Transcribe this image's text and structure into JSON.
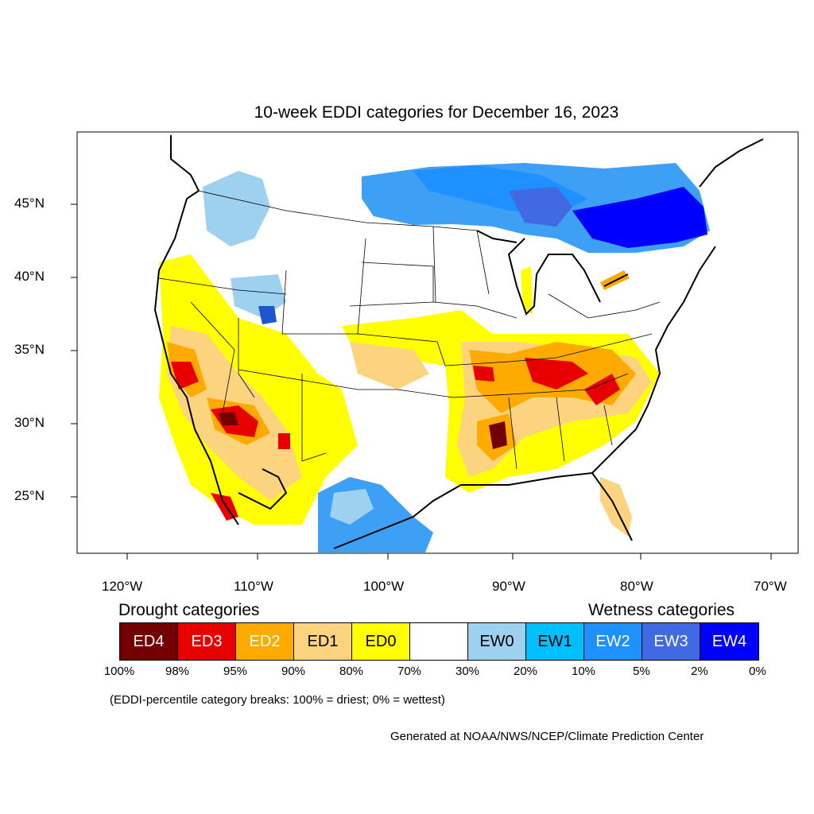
{
  "title": "10-week EDDI categories for December 16, 2023",
  "map": {
    "lat_labels": [
      "45°N",
      "40°N",
      "35°N",
      "30°N",
      "25°N"
    ],
    "lon_labels": [
      "120°W",
      "110°W",
      "100°W",
      "90°W",
      "80°W",
      "70°W"
    ]
  },
  "legend": {
    "drought_heading": "Drought categories",
    "wetness_heading": "Wetness categories",
    "categories": [
      {
        "label": "ED4",
        "color": "#730000",
        "text_color": "#ffffff"
      },
      {
        "label": "ED3",
        "color": "#e60000",
        "text_color": "#ffffff"
      },
      {
        "label": "ED2",
        "color": "#ffaa00",
        "text_color": "#ffffff"
      },
      {
        "label": "ED1",
        "color": "#fcd37f",
        "text_color": "#000000"
      },
      {
        "label": "ED0",
        "color": "#ffff00",
        "text_color": "#000000"
      },
      {
        "label": "",
        "color": "#ffffff",
        "text_color": "#000000"
      },
      {
        "label": "EW0",
        "color": "#9ed0f0",
        "text_color": "#000000"
      },
      {
        "label": "EW1",
        "color": "#00bfff",
        "text_color": "#000000"
      },
      {
        "label": "EW2",
        "color": "#1e90ff",
        "text_color": "#ffffff"
      },
      {
        "label": "EW3",
        "color": "#4169e1",
        "text_color": "#ffffff"
      },
      {
        "label": "EW4",
        "color": "#0000ff",
        "text_color": "#ffffff"
      }
    ],
    "percentiles": [
      "100%",
      "98%",
      "95%",
      "90%",
      "80%",
      "70%",
      "30%",
      "20%",
      "10%",
      "5%",
      "2%",
      "0%"
    ],
    "note": "(EDDI-percentile category breaks: 100% = driest; 0% = wettest)"
  },
  "credit": "Generated at NOAA/NWS/NCEP/Climate Prediction Center"
}
